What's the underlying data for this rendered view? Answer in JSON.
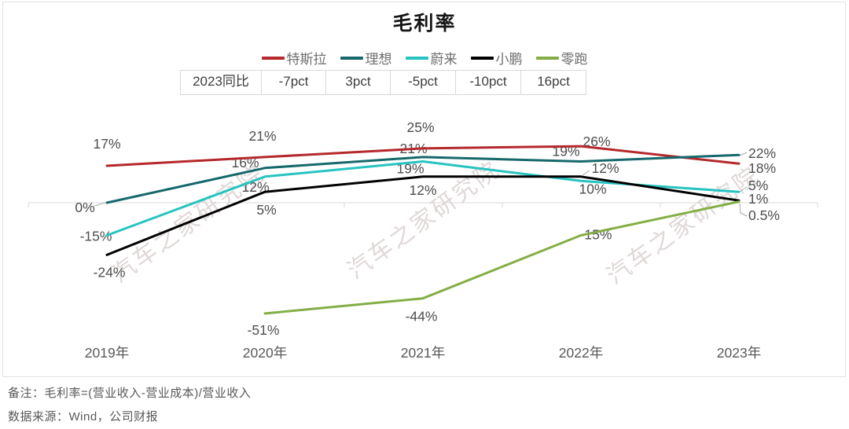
{
  "page": {
    "title": "毛利率",
    "note_line1": "备注：毛利率=(营业收入-营业成本)/营业收入",
    "note_line2": "数据来源：Wind，公司财报"
  },
  "watermark": {
    "text": "汽车之家研究院",
    "color": "#d8cfce"
  },
  "yoy_table": {
    "header": "2023同比",
    "values": [
      "-7pct",
      "3pct",
      "-5pct",
      "-10pct",
      "16pct"
    ]
  },
  "chart_data": {
    "type": "line",
    "title": "毛利率",
    "categories": [
      "2019年",
      "2020年",
      "2021年",
      "2022年",
      "2023年"
    ],
    "unit": "%",
    "ylim": [
      -60,
      35
    ],
    "grid": "zero-axis-only",
    "legend_position": "top",
    "data_labels": true,
    "axis_color": "#d9d9d9",
    "label_color": "#4d4d4d",
    "series": [
      {
        "key": "tesla",
        "name": "特斯拉",
        "color": "#b5282c",
        "values": [
          17,
          21,
          25,
          26,
          18
        ],
        "yoy_2023": "-7pct"
      },
      {
        "key": "lixiang",
        "name": "理想",
        "color": "#15686b",
        "values": [
          0,
          16,
          21,
          19,
          22
        ],
        "yoy_2023": "3pct"
      },
      {
        "key": "nio",
        "name": "蔚来",
        "color": "#27c3c0",
        "values": [
          -15,
          12,
          19,
          10,
          5
        ],
        "yoy_2023": "-5pct"
      },
      {
        "key": "xpeng",
        "name": "小鹏",
        "color": "#000000",
        "values": [
          -24,
          5,
          12,
          12,
          1
        ],
        "yoy_2023": "-10pct"
      },
      {
        "key": "leapmotor",
        "name": "零跑",
        "color": "#84ae45",
        "values": [
          null,
          -51,
          -44,
          -15,
          0.5
        ],
        "yoy_2023": "16pct"
      }
    ]
  }
}
